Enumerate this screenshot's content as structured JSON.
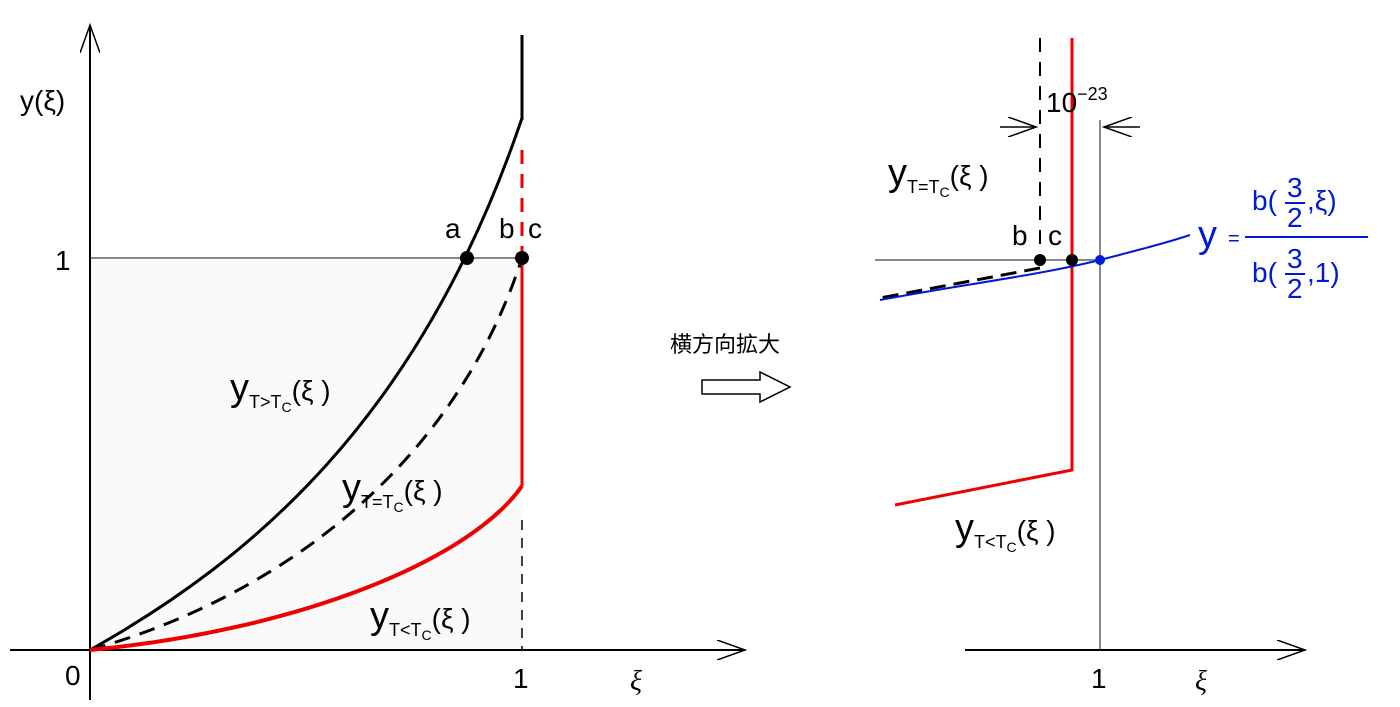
{
  "arrow_caption": "横方向拡大",
  "left": {
    "y_axis_label": "y(ξ)",
    "y_tick": "1",
    "origin": "0",
    "x_tick": "1",
    "x_axis_label": "ξ",
    "points": [
      "a",
      "b",
      "c"
    ],
    "curves": [
      {
        "main": "y",
        "sub": "T>T",
        "subsub": "C",
        "arg": "(ξ )"
      },
      {
        "main": "y",
        "sub": "T=T",
        "subsub": "C",
        "arg": "(ξ )"
      },
      {
        "main": "y",
        "sub": "T<T",
        "subsub": "C",
        "arg": "(ξ )"
      }
    ]
  },
  "right": {
    "gap_base": "10",
    "gap_exp": "−23",
    "points": [
      "b",
      "c"
    ],
    "curves": [
      {
        "main": "y",
        "sub": "T=T",
        "subsub": "C",
        "arg": "(ξ )"
      },
      {
        "main": "y",
        "sub": "T<T",
        "subsub": "C",
        "arg": "(ξ )"
      }
    ],
    "formula": {
      "lhs": "y",
      "eq": "=",
      "num_pre": "b(",
      "num_frac_top": "3",
      "num_frac_bottom": "2",
      "num_post": ",ξ)",
      "den_pre": "b(",
      "den_frac_top": "3",
      "den_frac_bottom": "2",
      "den_post": ",1)"
    },
    "x_tick": "1",
    "x_axis_label": "ξ"
  }
}
